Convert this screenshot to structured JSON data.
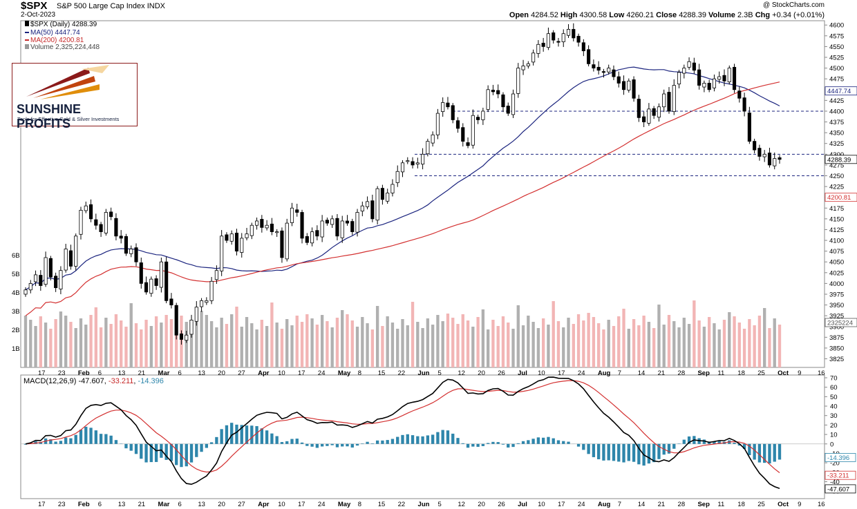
{
  "header": {
    "ticker": "$SPX",
    "subtitle": "S&P 500 Large Cap Index",
    "exchange": "INDX",
    "date": "2-Oct-2023",
    "credit": "@ StockCharts.com",
    "ohlc": {
      "open_label": "Open",
      "open": "4284.52",
      "high_label": "High",
      "high": "4300.58",
      "low_label": "Low",
      "low": "4260.21",
      "close_label": "Close",
      "close": "4288.39",
      "volume_label": "Volume",
      "volume": "2.3B",
      "chg_label": "Chg",
      "chg": "+0.34 (+0.01%)"
    }
  },
  "legend": {
    "price": "$SPX (Daily) 4288.39",
    "ma50": "MA(50) 4447.74",
    "ma200": "MA(200) 4200.81",
    "volume": "Volume 2,325,224,448"
  },
  "logo": {
    "name": "SUNSHINE PROFITS",
    "tagline": "Tools for Effective Gold & Silver Investments"
  },
  "macd": {
    "label": "MACD(12,26,9)",
    "macd": "-47.607",
    "signal": "-33.211",
    "hist": "-14.396"
  },
  "colors": {
    "ma50": "#1a237e",
    "ma200": "#d32f2f",
    "hist": "#2e86ab",
    "dashed": "#1a237e",
    "vol_up": "#b0b0b0",
    "vol_down": "#f2b5b5"
  },
  "chart_data": {
    "type": "candlestick",
    "price_axis": {
      "ticks": [
        3825,
        3850,
        3875,
        3900,
        3925,
        3950,
        3975,
        4000,
        4025,
        4050,
        4075,
        4100,
        4125,
        4150,
        4175,
        4200,
        4225,
        4250,
        4275,
        4300,
        4325,
        4350,
        4375,
        4400,
        4425,
        4450,
        4475,
        4500,
        4525,
        4550,
        4575,
        4600
      ],
      "ylim": [
        3805,
        4610
      ]
    },
    "volume_axis": {
      "ticks": [
        "1B",
        "2B",
        "3B",
        "4B",
        "5B",
        "6B"
      ]
    },
    "macd_axis": {
      "ticks": [
        70,
        60,
        50,
        40,
        30,
        20,
        10,
        0,
        -10,
        -20,
        -30,
        -40,
        -50
      ],
      "ylim": [
        -55,
        70
      ]
    },
    "price_labels": {
      "last": "4288.39",
      "ma50": "4447.74",
      "ma200": "4200.81",
      "volume": "2325224"
    },
    "macd_labels": {
      "hist": "-14.396",
      "signal": "-33.211",
      "macd": "-47.607"
    },
    "x_labels": [
      "17",
      "23",
      "Feb",
      "6",
      "13",
      "21",
      "Mar",
      "6",
      "13",
      "20",
      "27",
      "Apr",
      "10",
      "17",
      "24",
      "May",
      "8",
      "15",
      "22",
      "Jun",
      "5",
      "12",
      "20",
      "26",
      "Jul",
      "10",
      "17",
      "24",
      "Aug",
      "7",
      "14",
      "21",
      "28",
      "Sep",
      "11",
      "18",
      "25",
      "Oct",
      "9",
      "16"
    ],
    "support_levels": [
      4400,
      4300,
      4250
    ],
    "series": [
      {
        "name": "$SPX",
        "closes": [
          3985,
          4000,
          4020,
          3995,
          4060,
          4015,
          3990,
          4030,
          4080,
          4040,
          4110,
          4170,
          4180,
          4150,
          4135,
          4120,
          4165,
          4155,
          4110,
          4105,
          4070,
          4080,
          4050,
          4000,
          3980,
          4010,
          3995,
          4050,
          3960,
          3950,
          3880,
          3870,
          3880,
          3915,
          3945,
          3960,
          3960,
          4005,
          4030,
          4110,
          4100,
          4115,
          4075,
          4105,
          4115,
          4135,
          4145,
          4130,
          4135,
          4120,
          4120,
          4060,
          4140,
          4175,
          4165,
          4105,
          4095,
          4120,
          4110,
          4145,
          4140,
          4150,
          4110,
          4145,
          4140,
          4120,
          4165,
          4180,
          4190,
          4150,
          4220,
          4195,
          4210,
          4230,
          4260,
          4280,
          4285,
          4275,
          4280,
          4300,
          4330,
          4345,
          4395,
          4420,
          4410,
          4380,
          4360,
          4330,
          4320,
          4390,
          4380,
          4400,
          4450,
          4445,
          4440,
          4410,
          4395,
          4440,
          4500,
          4505,
          4510,
          4535,
          4555,
          4550,
          4580,
          4565,
          4560,
          4580,
          4590,
          4570,
          4560,
          4540,
          4510,
          4500,
          4495,
          4490,
          4500,
          4480,
          4465,
          4450,
          4470,
          4430,
          4385,
          4375,
          4405,
          4390,
          4410,
          4440,
          4400,
          4460,
          4490,
          4500,
          4515,
          4495,
          4460,
          4465,
          4450,
          4475,
          4480,
          4470,
          4500,
          4450,
          4430,
          4400,
          4330,
          4310,
          4295,
          4300,
          4275,
          4290,
          4288
        ]
      }
    ]
  }
}
